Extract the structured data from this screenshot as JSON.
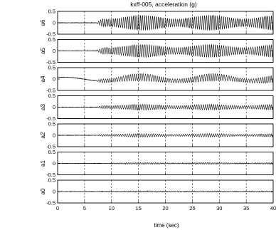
{
  "chart_data": {
    "type": "line",
    "title": "kxff-005, acceleration (g)",
    "xlabel": "time (sec)",
    "xlim": [
      0,
      40
    ],
    "xticks": [
      0,
      5,
      10,
      15,
      20,
      25,
      30,
      35,
      40
    ],
    "xtick_labels": [
      "0",
      "5",
      "10",
      "15",
      "20",
      "25",
      "30",
      "35",
      "40"
    ],
    "grid": "vertical dashed lines at x ticks",
    "panels": [
      {
        "ylabel": "a6",
        "ylim": [
          -0.5,
          0.5
        ],
        "yticks": [
          "0.5",
          "0",
          "-0.5"
        ],
        "onset": 7.2,
        "amplitude": 0.33,
        "freq_hz": 2.8,
        "drift": 0.0
      },
      {
        "ylabel": "a5",
        "ylim": [
          -0.5,
          0.5
        ],
        "yticks": [
          "0.5",
          "0",
          "-0.5"
        ],
        "onset": 7.2,
        "amplitude": 0.28,
        "freq_hz": 2.6,
        "drift": 0.0
      },
      {
        "ylabel": "a4",
        "ylim": [
          -0.5,
          0.5
        ],
        "yticks": [
          "0.5",
          "0",
          "-0.5"
        ],
        "onset": 7.0,
        "amplitude": 0.16,
        "freq_hz": 2.4,
        "drift": 0.08
      },
      {
        "ylabel": "a3",
        "ylim": [
          -0.5,
          0.5
        ],
        "yticks": [
          "0.5",
          "0",
          "-0.5"
        ],
        "onset": 7.2,
        "amplitude": 0.12,
        "freq_hz": 2.6,
        "drift": 0.0
      },
      {
        "ylabel": "a2",
        "ylim": [
          -0.5,
          0.5
        ],
        "yticks": [
          "0.5",
          "0",
          "-0.5"
        ],
        "onset": 7.2,
        "amplitude": 0.07,
        "freq_hz": 2.5,
        "drift": 0.0
      },
      {
        "ylabel": "a1",
        "ylim": [
          -0.5,
          0.5
        ],
        "yticks": [
          "0.5",
          "0",
          "-0.5"
        ],
        "onset": 9.0,
        "amplitude": 0.03,
        "freq_hz": 3.0,
        "drift": 0.0
      },
      {
        "ylabel": "a0",
        "ylim": [
          -0.5,
          0.5
        ],
        "yticks": [
          "0.5",
          "0",
          "-0.5"
        ],
        "onset": 9.0,
        "amplitude": 0.02,
        "freq_hz": 3.0,
        "drift": 0.0
      }
    ]
  }
}
